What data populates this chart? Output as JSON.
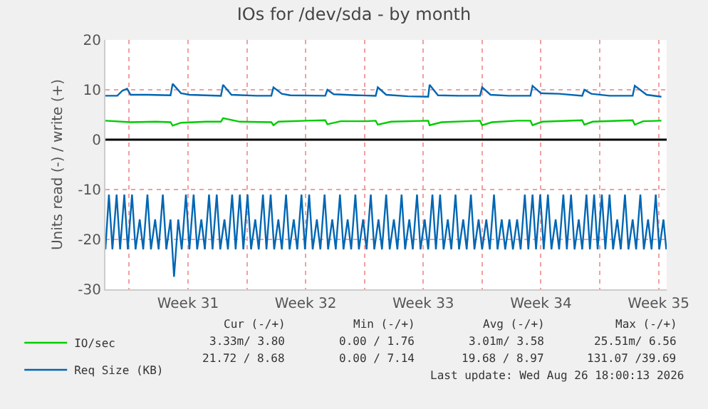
{
  "chart_data": {
    "type": "line",
    "title": "IOs for /dev/sda - by month",
    "ylabel": "Units read (-) / write (+)",
    "xlim": [
      "2026-07-25T14:00",
      "2026-08-27T23:36"
    ],
    "ylim": [
      -30,
      20
    ],
    "xticks": [
      {
        "value": "2026-07-27T00:00",
        "label": null
      },
      {
        "value": "2026-07-30T12:00",
        "label": "Week 31"
      },
      {
        "value": "2026-08-03T00:00",
        "label": null
      },
      {
        "value": "2026-08-06T12:00",
        "label": "Week 32"
      },
      {
        "value": "2026-08-10T00:00",
        "label": null
      },
      {
        "value": "2026-08-13T12:00",
        "label": "Week 33"
      },
      {
        "value": "2026-08-17T00:00",
        "label": null
      },
      {
        "value": "2026-08-20T12:00",
        "label": "Week 34"
      },
      {
        "value": "2026-08-24T00:00",
        "label": null
      },
      {
        "value": "2026-08-27T12:00",
        "label": "Week 35"
      }
    ],
    "yticks": [
      -30,
      -20,
      -10,
      0,
      10,
      20
    ],
    "grid": true,
    "legend": "bottom left",
    "ref_lines": [
      {
        "axis": "y",
        "value": 0,
        "color": "#000000"
      }
    ],
    "series": [
      {
        "name": "IO/sec",
        "color": "#00cc00",
        "x": [
          "2026-07-25T14:00",
          "2026-07-27T02:00",
          "2026-07-28T14:00",
          "2026-07-29T11:00",
          "2026-07-29T14:00",
          "2026-07-30T02:00",
          "2026-07-31T14:00",
          "2026-08-01T11:00",
          "2026-08-01T14:00",
          "2026-08-02T14:00",
          "2026-08-04T11:00",
          "2026-08-04T14:00",
          "2026-08-04T21:00",
          "2026-08-06T14:00",
          "2026-08-07T16:00",
          "2026-08-07T19:00",
          "2026-08-08T14:00",
          "2026-08-10T02:00",
          "2026-08-10T16:00",
          "2026-08-10T19:00",
          "2026-08-11T14:00",
          "2026-08-13T19:00",
          "2026-08-13T21:00",
          "2026-08-14T14:00",
          "2026-08-16T21:00",
          "2026-08-17T00:00",
          "2026-08-17T14:00",
          "2026-08-19T02:00",
          "2026-08-19T21:00",
          "2026-08-20T00:00",
          "2026-08-20T14:00",
          "2026-08-22T23:00",
          "2026-08-23T02:00",
          "2026-08-23T14:00",
          "2026-08-25T23:00",
          "2026-08-26T02:00",
          "2026-08-26T14:00",
          "2026-08-27T16:00"
        ],
        "values": [
          3.8,
          3.5,
          3.6,
          3.5,
          2.8,
          3.4,
          3.6,
          3.6,
          4.3,
          3.6,
          3.5,
          2.9,
          3.6,
          3.8,
          3.9,
          3.1,
          3.7,
          3.7,
          3.8,
          3.0,
          3.6,
          3.8,
          2.9,
          3.5,
          3.8,
          2.9,
          3.5,
          3.8,
          3.8,
          2.9,
          3.6,
          3.9,
          3.0,
          3.6,
          3.9,
          3.0,
          3.7,
          3.8
        ]
      },
      {
        "name": "Req Size (KB)",
        "color": "#0066b3",
        "x": [
          "2026-07-25T14:00",
          "2026-07-26T07:00",
          "2026-07-26T14:00",
          "2026-07-26T21:00",
          "2026-07-27T02:00",
          "2026-07-28T02:00",
          "2026-07-29T11:00",
          "2026-07-29T14:00",
          "2026-07-30T02:00",
          "2026-07-30T14:00",
          "2026-08-01T11:00",
          "2026-08-01T14:00",
          "2026-08-02T02:00",
          "2026-08-03T14:00",
          "2026-08-04T11:00",
          "2026-08-04T14:00",
          "2026-08-05T02:00",
          "2026-08-05T14:00",
          "2026-08-07T16:00",
          "2026-08-07T19:00",
          "2026-08-08T04:00",
          "2026-08-09T14:00",
          "2026-08-10T16:00",
          "2026-08-10T19:00",
          "2026-08-11T07:00",
          "2026-08-12T14:00",
          "2026-08-13T19:00",
          "2026-08-13T21:00",
          "2026-08-14T09:00",
          "2026-08-15T14:00",
          "2026-08-16T21:00",
          "2026-08-17T00:00",
          "2026-08-17T12:00",
          "2026-08-18T14:00",
          "2026-08-19T21:00",
          "2026-08-20T00:00",
          "2026-08-20T12:00",
          "2026-08-21T14:00",
          "2026-08-22T23:00",
          "2026-08-23T02:00",
          "2026-08-23T12:00",
          "2026-08-24T14:00",
          "2026-08-25T23:00",
          "2026-08-26T02:00",
          "2026-08-26T19:00",
          "2026-08-27T16:00"
        ],
        "values": [
          8.8,
          8.8,
          9.8,
          10.2,
          9.0,
          9.0,
          8.9,
          11.2,
          9.3,
          9.0,
          8.8,
          11.0,
          9.0,
          8.8,
          8.8,
          10.5,
          9.2,
          8.9,
          8.8,
          10.0,
          9.1,
          8.9,
          8.8,
          10.5,
          9.0,
          8.7,
          8.6,
          11.0,
          8.9,
          8.8,
          8.8,
          10.5,
          9.0,
          8.8,
          8.8,
          10.8,
          9.3,
          9.2,
          8.8,
          10.0,
          9.2,
          8.8,
          8.8,
          10.8,
          9.0,
          8.6
        ]
      },
      {
        "color": "#0066b3",
        "x": [
          "2026-07-25T14:00",
          "2026-07-25T19:00",
          "2026-07-26T00:00",
          "2026-07-26T06:00",
          "2026-07-26T11:00",
          "2026-07-26T17:00",
          "2026-07-26T22:00",
          "2026-07-27T04:00",
          "2026-07-27T09:00",
          "2026-07-27T15:00",
          "2026-07-27T20:00",
          "2026-07-28T02:00",
          "2026-07-28T07:00",
          "2026-07-28T13:00",
          "2026-07-28T18:00",
          "2026-07-29T00:00",
          "2026-07-29T05:00",
          "2026-07-29T11:00",
          "2026-07-29T16:00",
          "2026-07-29T22:00",
          "2026-07-30T03:00",
          "2026-07-30T09:00",
          "2026-07-30T14:00",
          "2026-07-30T20:00",
          "2026-07-31T01:00",
          "2026-07-31T07:00",
          "2026-07-31T12:00",
          "2026-07-31T18:00",
          "2026-07-31T23:00",
          "2026-08-01T05:00",
          "2026-08-01T10:00",
          "2026-08-01T16:00",
          "2026-08-01T21:00",
          "2026-08-02T03:00",
          "2026-08-02T08:00",
          "2026-08-02T14:00",
          "2026-08-02T19:00",
          "2026-08-03T01:00",
          "2026-08-03T06:00",
          "2026-08-03T12:00",
          "2026-08-03T17:00",
          "2026-08-03T23:00",
          "2026-08-04T04:00",
          "2026-08-04T10:00",
          "2026-08-04T15:00",
          "2026-08-04T21:00",
          "2026-08-05T02:00",
          "2026-08-05T08:00",
          "2026-08-05T13:00",
          "2026-08-05T19:00",
          "2026-08-06T00:00",
          "2026-08-06T06:00",
          "2026-08-06T11:00",
          "2026-08-06T17:00",
          "2026-08-06T22:00",
          "2026-08-07T04:00",
          "2026-08-07T09:00",
          "2026-08-07T15:00",
          "2026-08-07T20:00",
          "2026-08-08T02:00",
          "2026-08-08T07:00",
          "2026-08-08T13:00",
          "2026-08-08T18:00",
          "2026-08-09T00:00",
          "2026-08-09T05:00",
          "2026-08-09T11:00",
          "2026-08-09T16:00",
          "2026-08-09T22:00",
          "2026-08-10T03:00",
          "2026-08-10T09:00",
          "2026-08-10T14:00",
          "2026-08-10T20:00",
          "2026-08-11T01:00",
          "2026-08-11T07:00",
          "2026-08-11T12:00",
          "2026-08-11T18:00",
          "2026-08-11T23:00",
          "2026-08-12T05:00",
          "2026-08-12T10:00",
          "2026-08-12T16:00",
          "2026-08-12T21:00",
          "2026-08-13T03:00",
          "2026-08-13T08:00",
          "2026-08-13T14:00",
          "2026-08-13T19:00",
          "2026-08-14T01:00",
          "2026-08-14T06:00",
          "2026-08-14T12:00",
          "2026-08-14T17:00",
          "2026-08-14T23:00",
          "2026-08-15T04:00",
          "2026-08-15T10:00",
          "2026-08-15T15:00",
          "2026-08-15T21:00",
          "2026-08-16T02:00",
          "2026-08-16T08:00",
          "2026-08-16T13:00",
          "2026-08-16T19:00",
          "2026-08-17T00:00",
          "2026-08-17T06:00",
          "2026-08-17T11:00",
          "2026-08-17T17:00",
          "2026-08-17T22:00",
          "2026-08-18T04:00",
          "2026-08-18T09:00",
          "2026-08-18T15:00",
          "2026-08-18T20:00",
          "2026-08-19T02:00",
          "2026-08-19T07:00",
          "2026-08-19T13:00",
          "2026-08-19T18:00",
          "2026-08-20T00:00",
          "2026-08-20T05:00",
          "2026-08-20T11:00",
          "2026-08-20T16:00",
          "2026-08-20T22:00",
          "2026-08-21T03:00",
          "2026-08-21T09:00",
          "2026-08-21T14:00",
          "2026-08-21T20:00",
          "2026-08-22T01:00",
          "2026-08-22T07:00",
          "2026-08-22T12:00",
          "2026-08-22T18:00",
          "2026-08-22T23:00",
          "2026-08-23T05:00",
          "2026-08-23T10:00",
          "2026-08-23T16:00",
          "2026-08-23T21:00",
          "2026-08-24T03:00",
          "2026-08-24T08:00",
          "2026-08-24T14:00",
          "2026-08-24T19:00",
          "2026-08-25T01:00",
          "2026-08-25T06:00",
          "2026-08-25T12:00",
          "2026-08-25T17:00",
          "2026-08-25T23:00",
          "2026-08-26T04:00",
          "2026-08-26T10:00",
          "2026-08-26T15:00",
          "2026-08-26T21:00",
          "2026-08-27T02:00",
          "2026-08-27T08:00",
          "2026-08-27T13:00",
          "2026-08-27T19:00",
          "2026-08-27T23:00"
        ],
        "values": [
          -22,
          -11,
          -22,
          -11,
          -22,
          -11,
          -22,
          -11,
          -22,
          -16,
          -22,
          -11,
          -22,
          -16,
          -22,
          -11,
          -22,
          -16,
          -27.5,
          -16,
          -22,
          -11,
          -22,
          -11,
          -22,
          -16,
          -22,
          -11,
          -22,
          -11,
          -22,
          -16,
          -22,
          -11,
          -22,
          -11,
          -22,
          -11,
          -22,
          -16,
          -22,
          -11,
          -22,
          -11,
          -22,
          -16,
          -22,
          -11,
          -22,
          -16,
          -22,
          -11,
          -22,
          -11,
          -22,
          -16,
          -22,
          -11,
          -22,
          -16,
          -22,
          -11,
          -22,
          -16,
          -22,
          -11,
          -22,
          -16,
          -22,
          -11,
          -22,
          -16,
          -22,
          -11,
          -22,
          -16,
          -22,
          -11,
          -22,
          -16,
          -22,
          -11,
          -22,
          -16,
          -22,
          -11,
          -22,
          -11,
          -22,
          -16,
          -22,
          -11,
          -22,
          -16,
          -22,
          -11,
          -22,
          -16,
          -22,
          -16,
          -22,
          -11,
          -22,
          -16,
          -22,
          -16,
          -22,
          -16,
          -22,
          -11,
          -22,
          -11,
          -22,
          -11,
          -22,
          -11,
          -22,
          -16,
          -22,
          -11,
          -22,
          -11,
          -22,
          -16,
          -22,
          -11,
          -22,
          -11,
          -22,
          -11,
          -22,
          -11,
          -22,
          -16,
          -22,
          -11,
          -22,
          -16,
          -22,
          -11,
          -22,
          -16,
          -22,
          -11,
          -22,
          -16,
          -22
        ]
      }
    ],
    "annotations": [
      "Cur (-/+)",
      "Min (-/+)",
      "Avg (-/+)",
      "Max (-/+)",
      "3.33m/ 3.80",
      "0.00 / 1.76",
      "3.01m/ 3.58",
      "25.51m/ 6.56",
      "21.72 / 8.68",
      "0.00 / 7.14",
      "19.68 / 8.97",
      "131.07 /39.69",
      "Last update: Wed Aug 26 18:00:13 2026"
    ]
  }
}
